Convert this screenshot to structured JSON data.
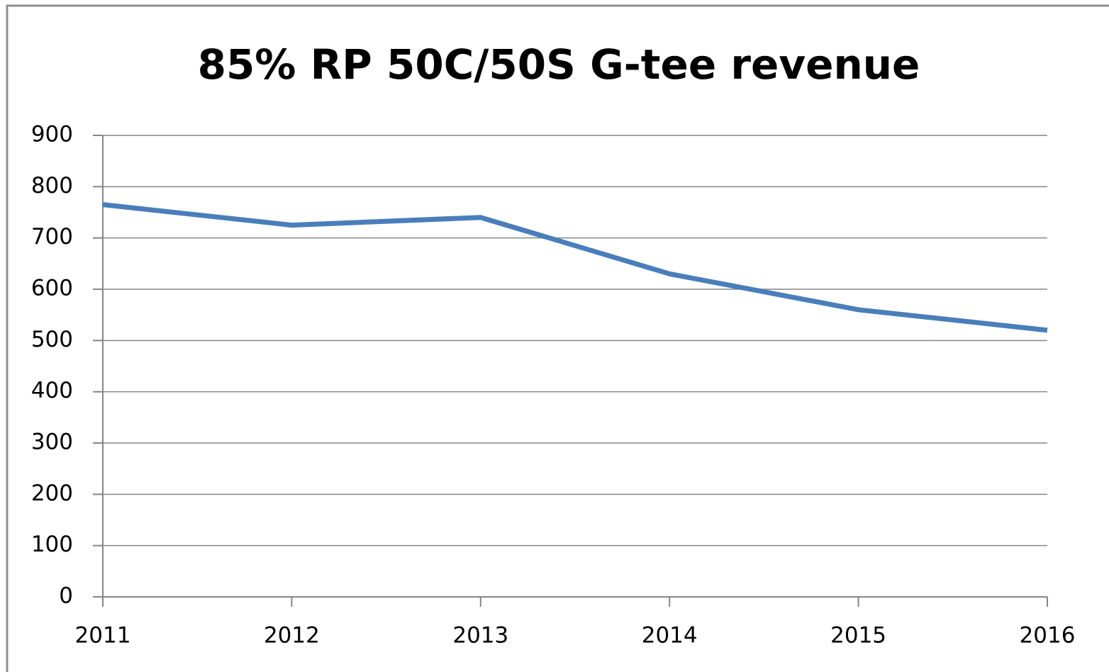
{
  "chart_data": {
    "type": "line",
    "title": "85% RP 50C/50S G-tee revenue",
    "x": [
      2011,
      2012,
      2013,
      2014,
      2015,
      2016
    ],
    "values": [
      765,
      725,
      740,
      630,
      560,
      520
    ],
    "color": "#4a7ebb",
    "xlim": [
      2011,
      2016
    ],
    "xticks": [
      2011,
      2012,
      2013,
      2014,
      2015,
      2016
    ],
    "ylim": [
      0,
      900
    ],
    "yticks": [
      0,
      100,
      200,
      300,
      400,
      500,
      600,
      700,
      800,
      900
    ],
    "grid": true
  }
}
